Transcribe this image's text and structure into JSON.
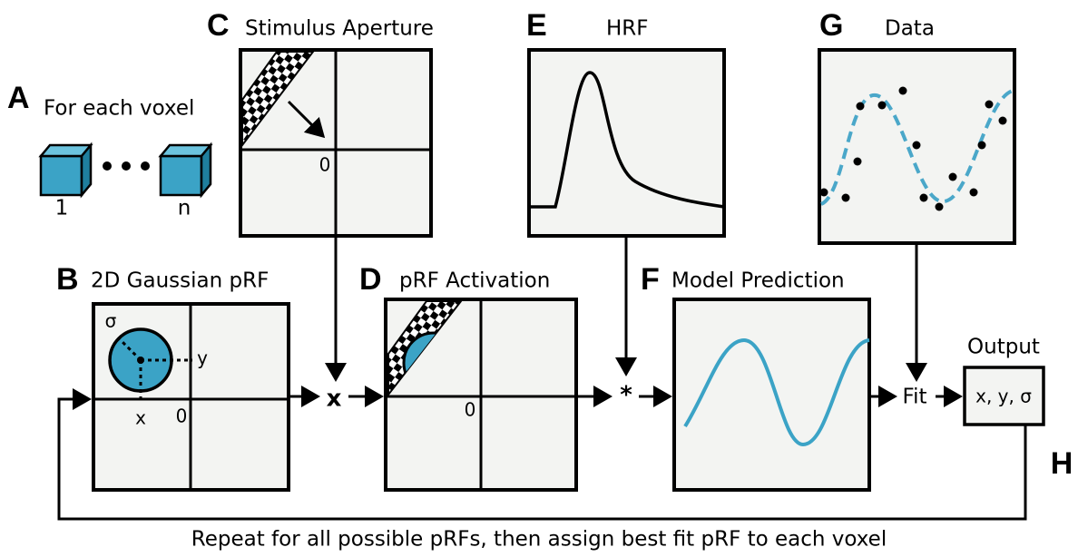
{
  "voxels": {
    "letter": "A",
    "title": "For each voxel",
    "first": "1",
    "last": "n"
  },
  "stimulus": {
    "letter": "C",
    "title": "Stimulus Aperture",
    "origin": "0"
  },
  "hrf": {
    "letter": "E",
    "title": "HRF"
  },
  "data": {
    "letter": "G",
    "title": "Data"
  },
  "gaussian": {
    "letter": "B",
    "title": "2D Gaussian pRF",
    "sigma": "σ",
    "y": "y",
    "x": "x",
    "origin": "0"
  },
  "activation": {
    "letter": "D",
    "title": "pRF Activation",
    "origin": "0"
  },
  "prediction": {
    "letter": "F",
    "title": "Model Prediction"
  },
  "operators": {
    "multiply": "x",
    "convolve": "*",
    "fit": "Fit"
  },
  "output": {
    "title": "Output",
    "value": "x, y, σ"
  },
  "loop": {
    "letter": "H",
    "caption": "Repeat for all possible pRFs, then assign best fit pRF to each voxel"
  }
}
